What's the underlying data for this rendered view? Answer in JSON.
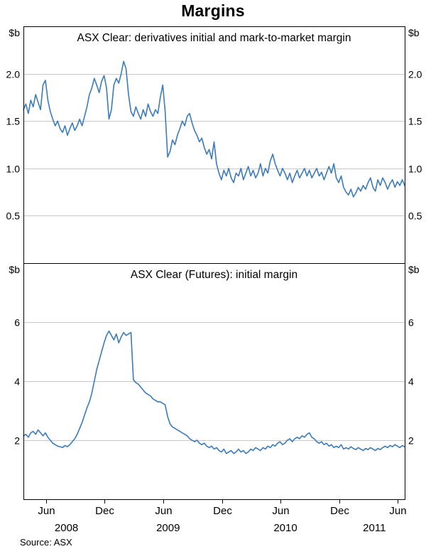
{
  "title": "Margins",
  "source": "Source: ASX",
  "accent_color": "#3a7bbe",
  "grid_color": "#c8c8c8",
  "border_color": "#000000",
  "chart_data": [
    {
      "type": "line",
      "panel": "top",
      "title": "ASX Clear: derivatives initial and mark-to-market margin",
      "unit": "$b",
      "ylabel": "$b",
      "ylim": [
        0,
        2.5
      ],
      "yticks": [
        0.5,
        1.0,
        1.5,
        2.0
      ],
      "ytick_labels": [
        "0.5",
        "1.0",
        "1.5",
        "2.0"
      ],
      "grid": true,
      "values": [
        1.62,
        1.68,
        1.58,
        1.72,
        1.65,
        1.78,
        1.7,
        1.62,
        1.88,
        1.93,
        1.72,
        1.6,
        1.52,
        1.45,
        1.5,
        1.42,
        1.38,
        1.45,
        1.35,
        1.42,
        1.48,
        1.4,
        1.45,
        1.52,
        1.45,
        1.55,
        1.65,
        1.78,
        1.85,
        1.95,
        1.88,
        1.8,
        1.92,
        1.98,
        1.85,
        1.52,
        1.62,
        1.88,
        1.95,
        1.9,
        2.0,
        2.13,
        2.05,
        1.78,
        1.6,
        1.55,
        1.65,
        1.58,
        1.52,
        1.62,
        1.55,
        1.68,
        1.6,
        1.55,
        1.62,
        1.58,
        1.75,
        1.88,
        1.6,
        1.12,
        1.18,
        1.3,
        1.25,
        1.35,
        1.42,
        1.5,
        1.45,
        1.55,
        1.58,
        1.48,
        1.4,
        1.35,
        1.28,
        1.32,
        1.22,
        1.15,
        1.2,
        1.1,
        1.28,
        1.05,
        0.95,
        0.88,
        0.98,
        0.92,
        1.0,
        0.9,
        0.85,
        0.95,
        0.92,
        1.0,
        0.88,
        0.95,
        1.02,
        0.92,
        0.98,
        0.9,
        0.95,
        1.05,
        0.92,
        1.0,
        0.95,
        1.08,
        1.15,
        1.05,
        0.98,
        0.92,
        1.0,
        0.95,
        0.88,
        0.95,
        0.85,
        0.92,
        0.98,
        0.9,
        0.95,
        1.0,
        0.92,
        0.98,
        0.9,
        0.95,
        1.0,
        0.92,
        0.96,
        0.88,
        0.95,
        1.02,
        0.95,
        1.05,
        0.9,
        0.85,
        0.92,
        0.8,
        0.75,
        0.72,
        0.78,
        0.7,
        0.74,
        0.8,
        0.76,
        0.82,
        0.78,
        0.85,
        0.9,
        0.8,
        0.76,
        0.88,
        0.82,
        0.9,
        0.85,
        0.78,
        0.84,
        0.88,
        0.8,
        0.86,
        0.82,
        0.88,
        0.82
      ]
    },
    {
      "type": "line",
      "panel": "bottom",
      "title": "ASX Clear (Futures): initial margin",
      "unit": "$b",
      "ylabel": "$b",
      "ylim": [
        0,
        8
      ],
      "yticks": [
        2,
        4,
        6
      ],
      "ytick_labels": [
        "2",
        "4",
        "6"
      ],
      "grid": true,
      "values": [
        2.15,
        2.2,
        2.1,
        2.25,
        2.3,
        2.2,
        2.35,
        2.25,
        2.15,
        2.25,
        2.1,
        2.0,
        1.9,
        1.85,
        1.8,
        1.78,
        1.75,
        1.82,
        1.78,
        1.85,
        1.95,
        2.05,
        2.2,
        2.4,
        2.6,
        2.85,
        3.1,
        3.3,
        3.6,
        4.0,
        4.4,
        4.7,
        5.0,
        5.3,
        5.55,
        5.7,
        5.55,
        5.4,
        5.6,
        5.3,
        5.5,
        5.65,
        5.55,
        5.6,
        5.65,
        4.05,
        3.95,
        3.9,
        3.8,
        3.7,
        3.6,
        3.55,
        3.5,
        3.4,
        3.35,
        3.3,
        3.3,
        3.25,
        3.2,
        2.8,
        2.55,
        2.45,
        2.4,
        2.35,
        2.3,
        2.25,
        2.2,
        2.15,
        2.05,
        2.0,
        1.95,
        2.0,
        1.9,
        1.85,
        1.9,
        1.8,
        1.75,
        1.8,
        1.7,
        1.75,
        1.65,
        1.6,
        1.7,
        1.55,
        1.6,
        1.65,
        1.55,
        1.6,
        1.7,
        1.6,
        1.65,
        1.55,
        1.6,
        1.7,
        1.65,
        1.75,
        1.7,
        1.65,
        1.75,
        1.7,
        1.8,
        1.75,
        1.85,
        1.8,
        1.9,
        1.95,
        1.85,
        1.9,
        2.0,
        2.05,
        1.95,
        2.05,
        2.1,
        2.05,
        2.15,
        2.1,
        2.2,
        2.25,
        2.1,
        2.05,
        1.95,
        1.9,
        1.95,
        1.85,
        1.9,
        1.8,
        1.85,
        1.75,
        1.8,
        1.75,
        1.85,
        1.7,
        1.75,
        1.7,
        1.78,
        1.72,
        1.68,
        1.75,
        1.7,
        1.65,
        1.72,
        1.68,
        1.75,
        1.7,
        1.65,
        1.72,
        1.68,
        1.75,
        1.8,
        1.75,
        1.82,
        1.78,
        1.85,
        1.8,
        1.75,
        1.82,
        1.78
      ]
    }
  ],
  "x_axis": {
    "domain": [
      3.2,
      42.2
    ],
    "x_start": 3.2,
    "x_step": 0.25,
    "tick_months": [
      5.5,
      11.5,
      17.5,
      23.5,
      29.5,
      35.5,
      41.5
    ],
    "tick_labels": [
      "Jun",
      "Dec",
      "Jun",
      "Dec",
      "Jun",
      "Dec",
      "Jun"
    ],
    "year_labels": [
      {
        "label": "2008",
        "month": 7.6
      },
      {
        "label": "2009",
        "month": 18
      },
      {
        "label": "2010",
        "month": 30
      },
      {
        "label": "2011",
        "month": 39.1
      }
    ]
  }
}
